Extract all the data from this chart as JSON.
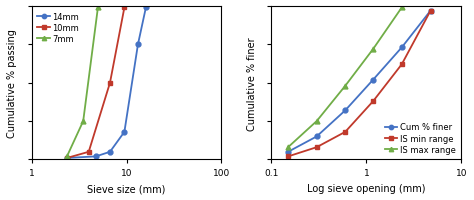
{
  "left": {
    "xlabel": "Sieve size (mm)",
    "ylabel": "Cumulative % passing",
    "xlim": [
      1,
      100
    ],
    "ylim": [
      0,
      100
    ],
    "series": {
      "14mm": {
        "x": [
          2.36,
          4.75,
          6.7,
          9.5,
          13.2,
          16.0
        ],
        "y": [
          1,
          2,
          5,
          18,
          75,
          99
        ],
        "color": "#4472c4",
        "marker": "o"
      },
      "10mm": {
        "x": [
          2.36,
          4.0,
          6.7,
          9.5
        ],
        "y": [
          1,
          5,
          50,
          99
        ],
        "color": "#c0392b",
        "marker": "s"
      },
      "7mm": {
        "x": [
          2.36,
          3.5,
          5.0
        ],
        "y": [
          2,
          25,
          99
        ],
        "color": "#70ad47",
        "marker": "^"
      }
    },
    "legend_loc": "upper left"
  },
  "right": {
    "xlabel": "Log sieve opening (mm)",
    "ylabel": "Cumulative % finer",
    "xlim": [
      0.1,
      10
    ],
    "ylim": [
      0,
      100
    ],
    "xticks": [
      0.1,
      1,
      10
    ],
    "xtick_labels": [
      "0.1",
      "1",
      "10"
    ],
    "series": {
      "Cum % finer": {
        "x": [
          0.15,
          0.3,
          0.6,
          1.18,
          2.36,
          4.75
        ],
        "y": [
          5,
          15,
          32,
          52,
          73,
          97
        ],
        "color": "#4472c4",
        "marker": "o"
      },
      "IS min range": {
        "x": [
          0.15,
          0.3,
          0.6,
          1.18,
          2.36,
          4.75
        ],
        "y": [
          2,
          8,
          18,
          38,
          62,
          97
        ],
        "color": "#c0392b",
        "marker": "s"
      },
      "IS max range": {
        "x": [
          0.15,
          0.3,
          0.6,
          1.18,
          2.36
        ],
        "y": [
          8,
          25,
          48,
          72,
          99
        ],
        "color": "#70ad47",
        "marker": "^"
      }
    },
    "legend_loc": "lower right"
  },
  "background_color": "#ffffff",
  "legend_fontsize": 6.0,
  "axis_label_fontsize": 7,
  "tick_fontsize": 6.5,
  "linewidth": 1.3,
  "markersize": 3.5
}
